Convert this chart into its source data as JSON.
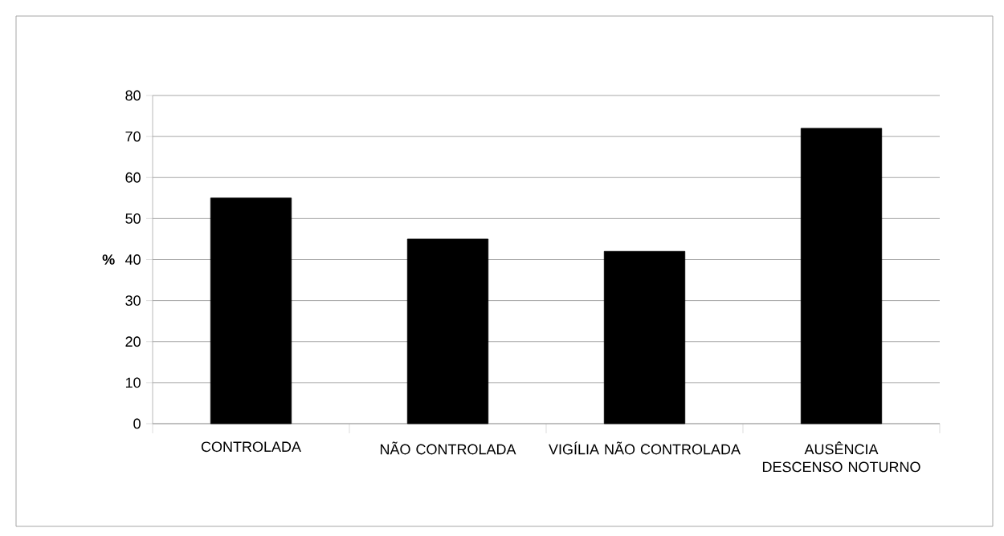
{
  "chart_data": {
    "type": "bar",
    "ylabel": "%",
    "categories": [
      "CONTROLADA",
      "NÃO CONTROLADA",
      "VIGÍLIA NÃO CONTROLADA",
      "AUSÊNCIA DESCENSO NOTURNO"
    ],
    "values": [
      55,
      45,
      42,
      72
    ],
    "color": "#000000",
    "ylim": [
      0,
      80
    ],
    "yticks": [
      0,
      10,
      20,
      30,
      40,
      50,
      60,
      70,
      80
    ],
    "grid": "y"
  }
}
